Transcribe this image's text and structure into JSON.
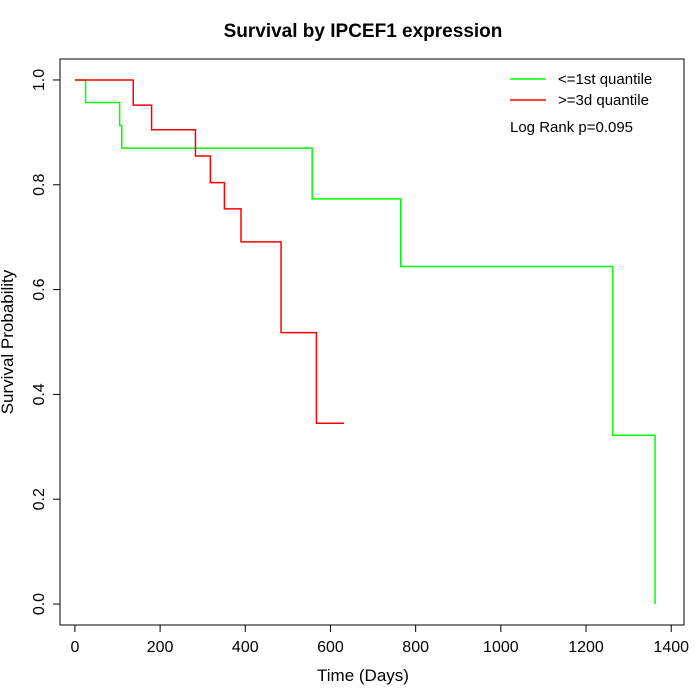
{
  "chart_data": {
    "type": "line",
    "title": "Survival by IPCEF1 expression",
    "xlabel": "Time (Days)",
    "ylabel": "Survival Probability",
    "xlim": [
      -35,
      1430
    ],
    "ylim": [
      -0.04,
      1.04
    ],
    "xticks": [
      0,
      200,
      400,
      600,
      800,
      1000,
      1200,
      1400
    ],
    "yticks": [
      0.0,
      0.2,
      0.4,
      0.6,
      0.8,
      1.0
    ],
    "xtick_labels": [
      "0",
      "200",
      "400",
      "600",
      "800",
      "1000",
      "1200",
      "1400"
    ],
    "ytick_labels": [
      "0.0",
      "0.2",
      "0.4",
      "0.6",
      "0.8",
      "1.0"
    ],
    "grid": false,
    "legend_position": "top-right",
    "annotation": "Log Rank p=0.095",
    "series": [
      {
        "name": "<=1st quantile",
        "color": "#00ff00",
        "step_x": [
          0,
          25,
          105,
          110,
          557,
          765,
          1263,
          1362
        ],
        "step_y": [
          1.0,
          0.957,
          0.913,
          0.87,
          0.773,
          0.644,
          0.322,
          0.0
        ]
      },
      {
        "name": ">=3d quantile",
        "color": "#ff0000",
        "step_x": [
          0,
          137,
          180,
          283,
          318,
          351,
          390,
          484,
          567,
          632
        ],
        "step_y": [
          1.0,
          0.952,
          0.905,
          0.855,
          0.804,
          0.754,
          0.691,
          0.518,
          0.345,
          0.345
        ]
      }
    ]
  }
}
